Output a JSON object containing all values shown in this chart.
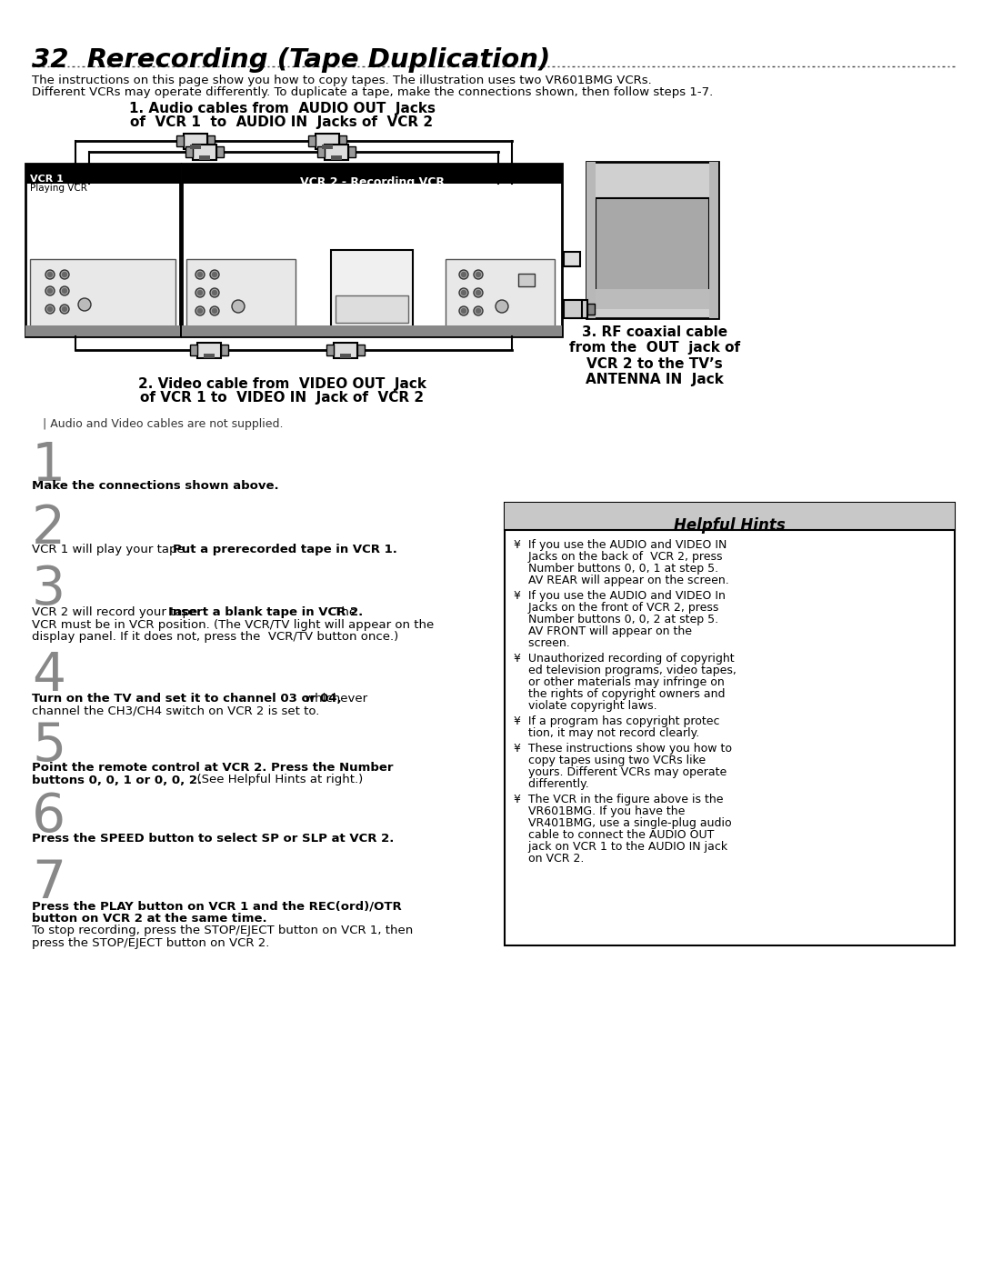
{
  "title": "32  Rerecording (Tape Duplication)",
  "sub1": "The instructions on this page show you how to copy tapes. The illustration uses two VR601BMG VCRs.",
  "sub2": "Different VCRs may operate differently. To duplicate a tape, make the connections shown, then follow steps 1-7.",
  "cap1a": "1. Audio cables from  AUDIO OUT  Jacks",
  "cap1b": "of  VCR 1  to  AUDIO IN  Jacks of  VCR 2",
  "vcr1_lbl1": "VCR 1",
  "vcr1_lbl2": "Playing VCR",
  "vcr2_lbl": "VCR 2 - Recording VCR",
  "cap2a": "2. Video cable from  VIDEO OUT  Jack",
  "cap2b": "of VCR 1 to  VIDEO IN  Jack of  VCR 2",
  "cap3": "3. RF coaxial cable\nfrom the  OUT  jack of\nVCR 2 to the TV’s\nANTENNA IN  Jack",
  "note": "| Audio and Video cables are not supplied.",
  "s1n": "1",
  "s1b": "Make the connections shown above.",
  "s2n": "2",
  "s2r": "VCR 1 will play your tape. ",
  "s2b": "Put a prerecorded tape in VCR 1.",
  "s3n": "3",
  "s3r1": "VCR 2 will record your tape. ",
  "s3b": "Insert a blank tape in VCR 2.",
  "s3r2": " The",
  "s3r3": "VCR must be in VCR position. (The VCR/TV light will appear on the",
  "s3r4": "display panel. If it does not, press the  VCR/TV button once.)",
  "s4n": "4",
  "s4b": "Turn on the TV and set it to channel 03 or 04,",
  "s4r1": " whichever",
  "s4r2": "channel the CH3/CH4 switch on VCR 2 is set to.",
  "s5n": "5",
  "s5b1": "Point the remote control at VCR 2. Press the Number",
  "s5b2": "buttons 0, 0, 1 or 0, 0, 2.",
  "s5r": "  (See Helpful Hints at right.)",
  "s6n": "6",
  "s6b": "Press the SPEED button to select SP or SLP at VCR 2.",
  "s7n": "7",
  "s7b1": "Press the PLAY button on VCR 1 and the REC(ord)/OTR",
  "s7b2": "button on VCR 2 at the same time.",
  "s7r1": "To stop recording, press the STOP/EJECT button on VCR 1, then",
  "s7r2": "press the STOP/EJECT button on VCR 2.",
  "ht": "Helpful Hints",
  "h1": "¥  If you use the AUDIO and VIDEO IN\n    Jacks on the back of  VCR 2, press\n    Number buttons 0, 0, 1 at step 5.\n    AV REAR will appear on the screen.",
  "h2": "¥  If you use the AUDIO and VIDEO In\n    Jacks on the front of VCR 2, press\n    Number buttons 0, 0, 2 at step 5.\n    AV FRONT will appear on the\n    screen.",
  "h3": "¥  Unauthorized recording of copyright\n    ed television programs, video tapes,\n    or other materials may infringe on\n    the rights of copyright owners and\n    violate copyright laws.",
  "h4": "¥  If a program has copyright protec\n    tion, it may not record clearly.",
  "h5": "¥  These instructions show you how to\n    copy tapes using two VCRs like\n    yours. Different VCRs may operate\n    differently.",
  "h6": "¥  The VCR in the figure above is the\n    VR601BMG. If you have the\n    VR401BMG, use a single-plug audio\n    cable to connect the AUDIO OUT\n    jack on VCR 1 to the AUDIO IN jack\n    on VCR 2.",
  "bg": "#ffffff",
  "tc": "#000000",
  "gc": "#888888",
  "hbg": "#c8c8c8"
}
